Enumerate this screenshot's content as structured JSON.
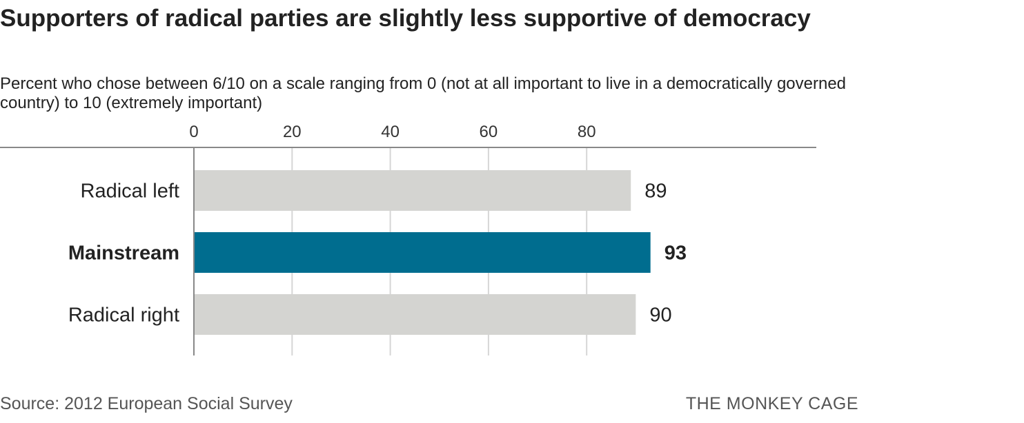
{
  "header": {
    "title": "Supporters of radical parties are slightly less supportive of democracy",
    "subtitle": "Percent who chose between 6/10 on a scale ranging from 0 (not at all important to live in a democratically governed country) to 10 (extremely important)"
  },
  "footer": {
    "source": "Source: 2012 European Social Survey",
    "credit": "THE MONKEY CAGE"
  },
  "chart_data": {
    "type": "bar",
    "orientation": "horizontal",
    "title": "Supporters of radical parties are slightly less supportive of democracy",
    "subtitle": "Percent who chose between 6/10 on a scale ranging from 0 (not at all important to live in a democratically governed country) to 10 (extremely important)",
    "categories": [
      "Radical left",
      "Mainstream",
      "Radical right"
    ],
    "values": [
      89,
      93,
      90
    ],
    "value_labels": [
      "89",
      "93",
      "90"
    ],
    "highlight": "Mainstream",
    "xlabel": "",
    "ylabel": "",
    "xlim": [
      0,
      100
    ],
    "xticks": [
      0,
      20,
      40,
      60,
      80
    ],
    "xtick_labels": [
      "0",
      "20",
      "40",
      "60",
      "80"
    ],
    "grid": true,
    "legend": "none",
    "colors": {
      "default_bar": "#d4d4d1",
      "highlight_bar": "#006d8f",
      "gridline": "#d6d6d6",
      "axis": "#888888"
    }
  }
}
